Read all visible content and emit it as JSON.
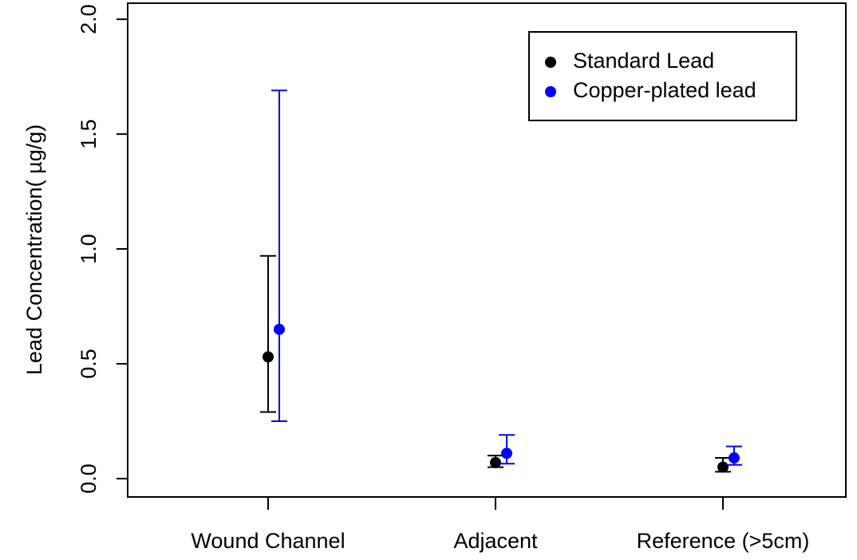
{
  "chart_data": {
    "type": "errorbar",
    "ylabel": "Lead Concentration( µg/g)",
    "categories": [
      "Wound Channel",
      "Adjacent",
      "Reference (>5cm)"
    ],
    "series": [
      {
        "name": "Standard Lead",
        "color": "#000000",
        "values": [
          0.53,
          0.07,
          0.05
        ],
        "lower": [
          0.29,
          0.05,
          0.03
        ],
        "upper": [
          0.97,
          0.1,
          0.09
        ]
      },
      {
        "name": "Copper-plated lead",
        "color": "#0000ff",
        "values": [
          0.65,
          0.11,
          0.09
        ],
        "lower": [
          0.25,
          0.065,
          0.06
        ],
        "upper": [
          1.69,
          0.19,
          0.14
        ]
      }
    ],
    "ylim": [
      -0.08,
      2.07
    ],
    "yticks": [
      {
        "value": 0,
        "label": "0.0"
      },
      0.5,
      {
        "value": 1,
        "label": "1.0"
      },
      1.5,
      {
        "value": 2,
        "label": "2.0"
      }
    ],
    "legend": "top-right"
  }
}
